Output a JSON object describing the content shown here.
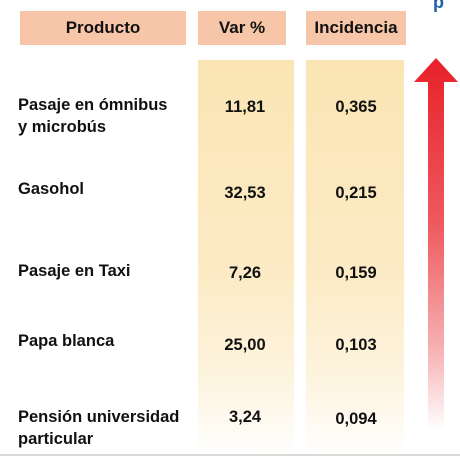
{
  "header": {
    "product": "Producto",
    "var": "Var %",
    "incidence": "Incidencia"
  },
  "rows": [
    {
      "product_line1": "Pasaje en ómnibus",
      "product_line2": "y microbús",
      "var": "11,81",
      "incidence": "0,365"
    },
    {
      "product_line1": "Gasohol",
      "product_line2": "",
      "var": "32,53",
      "incidence": "0,215"
    },
    {
      "product_line1": "Pasaje en Taxi",
      "product_line2": "",
      "var": "7,26",
      "incidence": "0,159"
    },
    {
      "product_line1": "Papa blanca",
      "product_line2": "",
      "var": "25,00",
      "incidence": "0,103"
    },
    {
      "product_line1": "Pensión universidad",
      "product_line2": "particular",
      "var": "3,24",
      "incidence": "0,094"
    }
  ],
  "colors": {
    "header_bg": "#f7c6a8",
    "column_bg": "#fbe5b4",
    "arrow": "#e8202a"
  },
  "icons": {
    "arrow": "up-arrow-icon"
  }
}
